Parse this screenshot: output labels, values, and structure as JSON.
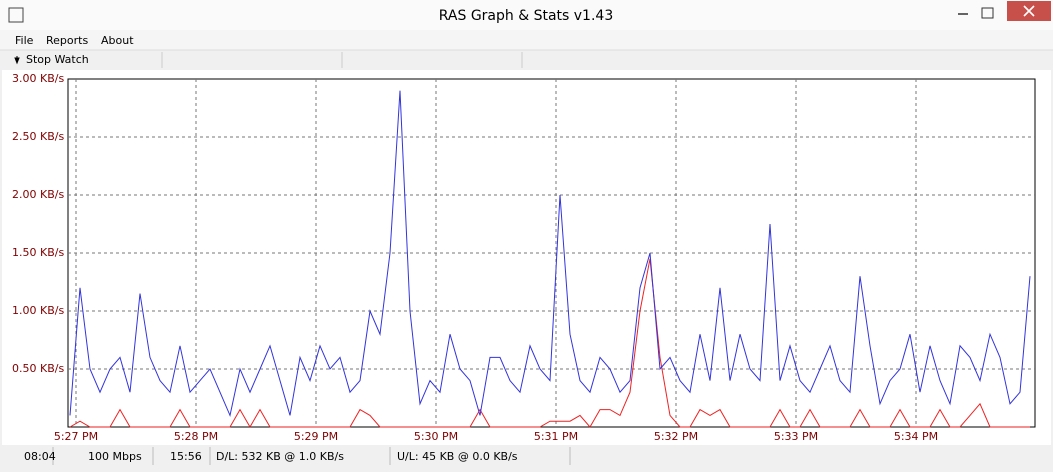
{
  "window": {
    "title": "RAS Graph & Stats v1.43"
  },
  "menu": [
    "File",
    "Reports",
    "About"
  ],
  "toolbar": {
    "button": "Stop Watch"
  },
  "chart_data": {
    "type": "line",
    "x": [
      -3,
      2,
      7,
      12,
      17,
      22,
      27,
      32,
      37,
      42,
      47,
      52,
      57,
      62,
      67,
      72,
      77,
      82,
      87,
      92,
      97,
      102,
      107,
      112,
      117,
      122,
      127,
      132,
      137,
      142,
      147,
      152,
      157,
      162,
      167,
      172,
      177,
      182,
      187,
      192,
      197,
      202,
      207,
      212,
      217,
      222,
      227,
      232,
      237,
      242,
      247,
      252,
      257,
      262,
      267,
      272,
      277,
      282,
      287,
      292,
      297,
      302,
      307,
      312,
      317,
      322,
      327,
      332,
      337,
      342,
      347,
      352,
      357,
      362,
      367,
      372,
      377,
      382,
      387,
      392,
      397,
      402,
      407,
      412,
      417,
      422,
      427,
      432,
      437,
      442,
      447,
      452,
      457,
      462,
      467,
      472,
      477
    ],
    "series": [
      {
        "color": "#3333dd",
        "values": [
          0.1,
          1.2,
          0.5,
          0.3,
          0.5,
          0.6,
          0.3,
          1.15,
          0.6,
          0.4,
          0.3,
          0.7,
          0.3,
          0.4,
          0.5,
          0.3,
          0.1,
          0.5,
          0.3,
          0.5,
          0.7,
          0.4,
          0.1,
          0.6,
          0.4,
          0.7,
          0.5,
          0.6,
          0.3,
          0.4,
          1.0,
          0.8,
          1.5,
          2.9,
          1.0,
          0.2,
          0.4,
          0.3,
          0.8,
          0.5,
          0.4,
          0.1,
          0.6,
          0.6,
          0.4,
          0.3,
          0.7,
          0.5,
          0.4,
          2.0,
          0.8,
          0.4,
          0.3,
          0.6,
          0.5,
          0.3,
          0.4,
          1.2,
          1.5,
          0.5,
          0.6,
          0.4,
          0.3,
          0.8,
          0.4,
          1.2,
          0.4,
          0.8,
          0.5,
          0.4,
          1.75,
          0.4,
          0.7,
          0.4,
          0.3,
          0.5,
          0.7,
          0.4,
          0.3,
          1.3,
          0.7,
          0.2,
          0.4,
          0.5,
          0.8,
          0.3,
          0.7,
          0.4,
          0.2,
          0.7,
          0.6,
          0.4,
          0.8,
          0.6,
          0.2,
          0.3,
          1.3
        ]
      },
      {
        "color": "#ee2222",
        "values": [
          0,
          0.05,
          0,
          0,
          0,
          0.15,
          0,
          0,
          0,
          0,
          0,
          0.15,
          0,
          0,
          0,
          0,
          0,
          0.15,
          0,
          0.15,
          0,
          0,
          0,
          0,
          0,
          0,
          0,
          0,
          0,
          0.15,
          0.1,
          0,
          0,
          0,
          0,
          0,
          0,
          0,
          0,
          0,
          0,
          0.15,
          0,
          0,
          0,
          0,
          0,
          0,
          0.05,
          0.05,
          0.05,
          0.1,
          0,
          0.15,
          0.15,
          0.1,
          0.3,
          1.0,
          1.45,
          0.6,
          0.1,
          0,
          0,
          0.15,
          0.1,
          0.15,
          0,
          0,
          0,
          0,
          0,
          0.15,
          0,
          0,
          0.15,
          0,
          0,
          0,
          0,
          0.15,
          0,
          0,
          0,
          0.15,
          0,
          0,
          0,
          0.15,
          0,
          0,
          0.1,
          0.2,
          0,
          0,
          0,
          0,
          0
        ]
      }
    ],
    "xlim": [
      -4,
      479.5
    ],
    "xticks": [
      {
        "value": 0,
        "label": "5:27 PM"
      },
      {
        "value": 60,
        "label": "5:28 PM"
      },
      {
        "value": 120,
        "label": "5:29 PM"
      },
      {
        "value": 180,
        "label": "5:30 PM"
      },
      {
        "value": 240,
        "label": "5:31 PM"
      },
      {
        "value": 300,
        "label": "5:32 PM"
      },
      {
        "value": 360,
        "label": "5:33 PM"
      },
      {
        "value": 420,
        "label": "5:34 PM"
      }
    ],
    "ylim": [
      0,
      3
    ],
    "yticks": [
      {
        "value": 0.5,
        "label": "0.50 KB/s"
      },
      {
        "value": 1,
        "label": "1.00 KB/s"
      },
      {
        "value": 1.5,
        "label": "1.50 KB/s"
      },
      {
        "value": 2,
        "label": "2.00 KB/s"
      },
      {
        "value": 2.5,
        "label": "2.50 KB/s"
      },
      {
        "value": 3,
        "label": "3.00 KB/s"
      }
    ],
    "grid": true
  },
  "status_bar": [
    "08:04",
    "100 Mbps",
    "15:56",
    "D/L: 532 KB @ 1.0 KB/s",
    "U/L: 45 KB @ 0.0 KB/s"
  ]
}
